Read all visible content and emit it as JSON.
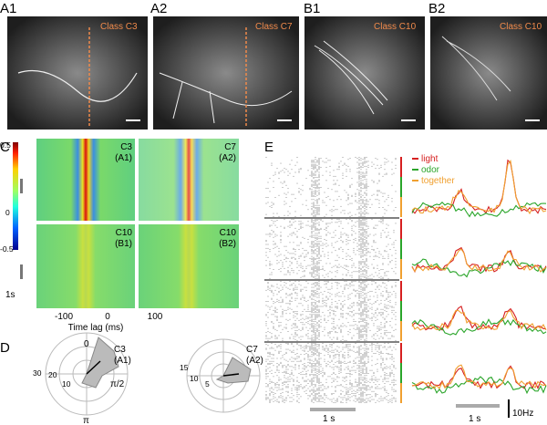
{
  "panels": {
    "a1": {
      "label": "A1",
      "class": "Class C3"
    },
    "a2": {
      "label": "A2",
      "class": "Class C7"
    },
    "b1": {
      "label": "B1",
      "class": "Class C10"
    },
    "b2": {
      "label": "B2",
      "class": "Class C10"
    },
    "c": {
      "label": "C",
      "colorbar": [
        "0.5",
        "0",
        "-0.5"
      ],
      "scale": "1s",
      "maps": [
        [
          "C3",
          "(A1)"
        ],
        [
          "C7",
          "(A2)"
        ],
        [
          "C10",
          "(B1)"
        ],
        [
          "C10",
          "(B2)"
        ]
      ],
      "xticks": [
        "-100",
        "0",
        "100"
      ],
      "xlabel": "Time lag (ms)"
    },
    "d": {
      "label": "D",
      "polar1": {
        "rings": [
          "30",
          "20",
          "10"
        ],
        "angles": [
          "0",
          "π/2",
          "π"
        ],
        "name": [
          "C3",
          "(A1)"
        ]
      },
      "polar2": {
        "rings": [
          "15",
          "10",
          "5"
        ],
        "name": [
          "C7",
          "(A2)"
        ]
      }
    },
    "e": {
      "label": "E",
      "legend": [
        "light",
        "odor",
        "together"
      ],
      "scale1": "1 s",
      "scale2": "1 s",
      "yscale": "10Hz"
    }
  }
}
